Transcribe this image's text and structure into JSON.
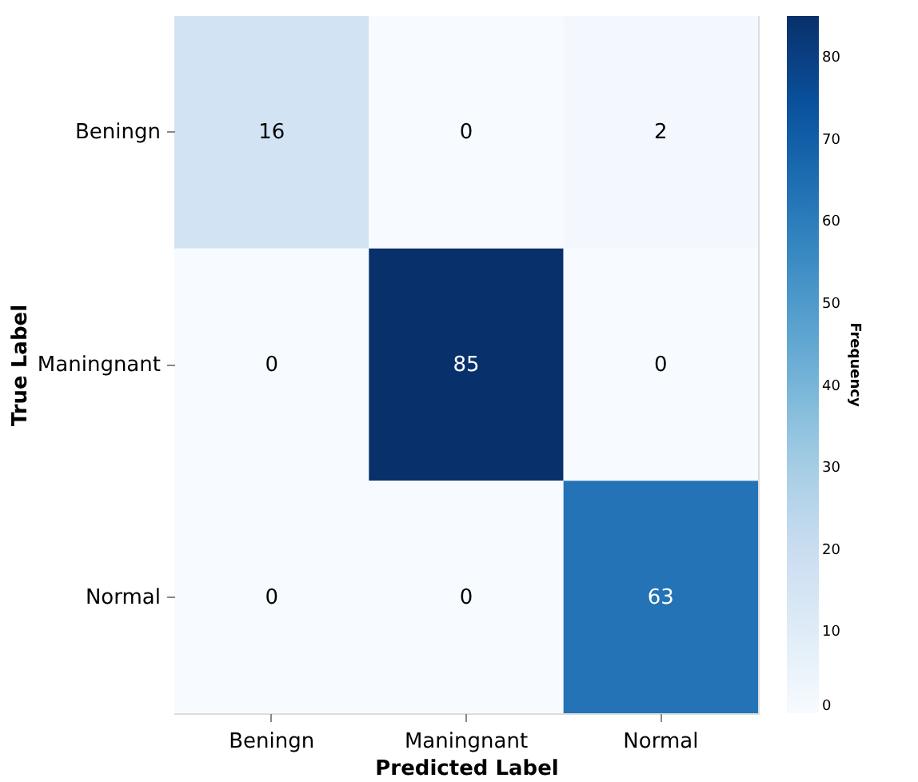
{
  "chart_data": {
    "type": "heatmap",
    "categories": [
      "Beningn",
      "Maningnant",
      "Normal"
    ],
    "y_categories": [
      "Beningn",
      "Maningnant",
      "Normal"
    ],
    "cells": [
      [
        16,
        0,
        2
      ],
      [
        0,
        85,
        0
      ],
      [
        0,
        0,
        63
      ]
    ],
    "xlabel": "Predicted Label",
    "ylabel": "True Label",
    "clabel": "Frequency",
    "clim": [
      0,
      85
    ],
    "cticks": [
      0,
      10,
      20,
      30,
      40,
      50,
      60,
      70,
      80
    ],
    "data_labels": true,
    "grid": false
  }
}
